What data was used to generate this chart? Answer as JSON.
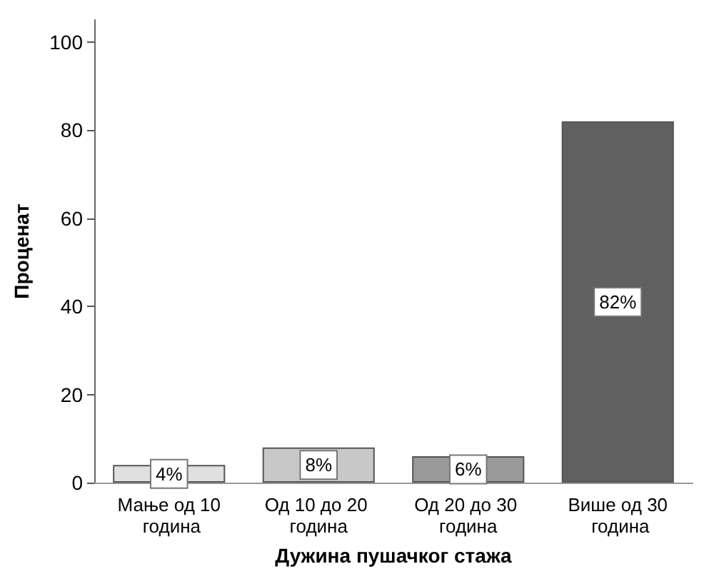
{
  "chart_data": {
    "type": "bar",
    "xlabel": "Дужина пушачког стажа",
    "ylabel": "Проценат",
    "categories": [
      "Мање од 10 година",
      "Од 10 до 20 година",
      "Од 20 до 30 година",
      "Више од 30 година"
    ],
    "values": [
      4,
      8,
      6,
      82
    ],
    "colors": [
      "#e0e0e0",
      "#c8c8c8",
      "#999999",
      "#606060"
    ],
    "value_labels": [
      "4%",
      "8%",
      "6%",
      "82%"
    ],
    "ylim": [
      0,
      105
    ],
    "yticks": [
      0,
      20,
      40,
      60,
      80,
      100
    ],
    "grid": false
  }
}
